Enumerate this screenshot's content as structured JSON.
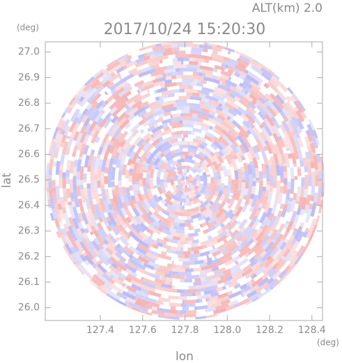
{
  "chart_data": {
    "type": "radar-image",
    "title": "2017/10/24 15:20:30",
    "subtitle": "ALT(km) 2.0",
    "x_label": "lon",
    "y_label": "lat",
    "x_unit": "(deg)",
    "y_unit": "(deg)",
    "xlim": [
      127.14,
      128.45
    ],
    "ylim": [
      25.95,
      27.04
    ],
    "xticks": [
      127.4,
      127.6,
      127.8,
      {
        "value": 128.0,
        "label": "128.0"
      },
      128.2,
      128.4
    ],
    "yticks": [
      {
        "value": 26.0,
        "label": "26.0"
      },
      26.1,
      26.2,
      26.3,
      26.4,
      26.5,
      26.6,
      26.7,
      26.8,
      26.9,
      {
        "value": 27.0,
        "label": "27.0"
      }
    ]
  }
}
